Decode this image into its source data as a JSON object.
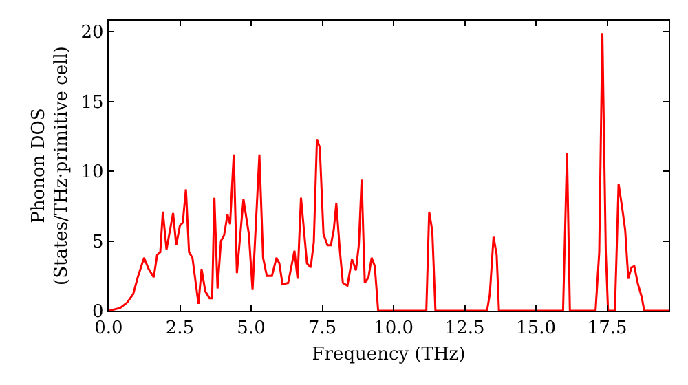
{
  "chart_data": {
    "type": "line",
    "xlabel": "Frequency (THz)",
    "ylabel": "Phonon DOS\n(States/THz·primitive cell)",
    "xlim": [
      0,
      19.66
    ],
    "ylim": [
      0,
      20.8
    ],
    "xticks": [
      {
        "value": 0,
        "label": "0.0"
      },
      {
        "value": 2.5,
        "label": "2.5"
      },
      {
        "value": 5,
        "label": "5.0"
      },
      {
        "value": 7.5,
        "label": "7.5"
      },
      {
        "value": 10,
        "label": "10.0"
      },
      {
        "value": 12.5,
        "label": "12.5"
      },
      {
        "value": 15,
        "label": "15.0"
      },
      {
        "value": 17.5,
        "label": "17.5"
      }
    ],
    "yticks": [
      0,
      5,
      10,
      15,
      20
    ],
    "marker": "none",
    "line_style": "solid",
    "x": [
      0,
      0.4,
      0.65,
      0.86,
      1.02,
      1.24,
      1.4,
      1.58,
      1.7,
      1.81,
      1.9,
      2.03,
      2.26,
      2.37,
      2.5,
      2.6,
      2.71,
      2.82,
      2.94,
      3.15,
      3.26,
      3.39,
      3.54,
      3.63,
      3.71,
      3.82,
      3.94,
      4.05,
      4.17,
      4.26,
      4.39,
      4.5,
      4.73,
      4.92,
      5.05,
      5.29,
      5.42,
      5.55,
      5.73,
      5.89,
      5.99,
      6.1,
      6.3,
      6.52,
      6.63,
      6.75,
      6.96,
      7.09,
      7.2,
      7.31,
      7.41,
      7.54,
      7.68,
      7.8,
      7.9,
      7.99,
      8.12,
      8.22,
      8.38,
      8.54,
      8.68,
      8.78,
      8.88,
      8.99,
      9.12,
      9.23,
      9.34,
      9.46,
      11.15,
      11.25,
      11.36,
      11.47,
      13.28,
      13.38,
      13.51,
      13.62,
      13.7,
      15.95,
      16.09,
      16.19,
      17.09,
      17.22,
      17.33,
      17.45,
      17.53,
      17.77,
      17.9,
      18.03,
      18.13,
      18.24,
      18.35,
      18.45,
      18.58,
      18.71,
      18.8,
      19.66
    ],
    "series": [
      {
        "color": "#ff0000",
        "values": [
          0,
          0.2,
          0.6,
          1.2,
          2.4,
          3.8,
          3.0,
          2.4,
          4.0,
          4.2,
          7.1,
          4.4,
          7.0,
          4.7,
          6.1,
          6.3,
          8.7,
          4.2,
          3.8,
          0.5,
          3.0,
          1.4,
          0.9,
          0.9,
          8.1,
          1.6,
          5.0,
          5.4,
          6.9,
          6.2,
          11.2,
          2.7,
          8.0,
          5.5,
          1.5,
          11.2,
          3.8,
          2.5,
          2.5,
          3.8,
          3.4,
          1.9,
          2.0,
          4.3,
          2.3,
          8.1,
          3.4,
          3.1,
          4.9,
          12.3,
          11.7,
          5.5,
          4.7,
          4.7,
          5.8,
          7.7,
          4.2,
          2.0,
          1.8,
          3.7,
          2.9,
          4.7,
          9.4,
          2.0,
          2.4,
          3.8,
          3.2,
          0,
          0,
          7.1,
          5.7,
          0,
          0,
          1.2,
          5.3,
          4.0,
          0,
          0,
          11.3,
          0,
          0,
          4.2,
          19.9,
          4.2,
          0,
          0,
          9.1,
          7.3,
          5.8,
          2.3,
          3.1,
          3.2,
          1.9,
          1.0,
          0,
          0
        ]
      }
    ]
  }
}
